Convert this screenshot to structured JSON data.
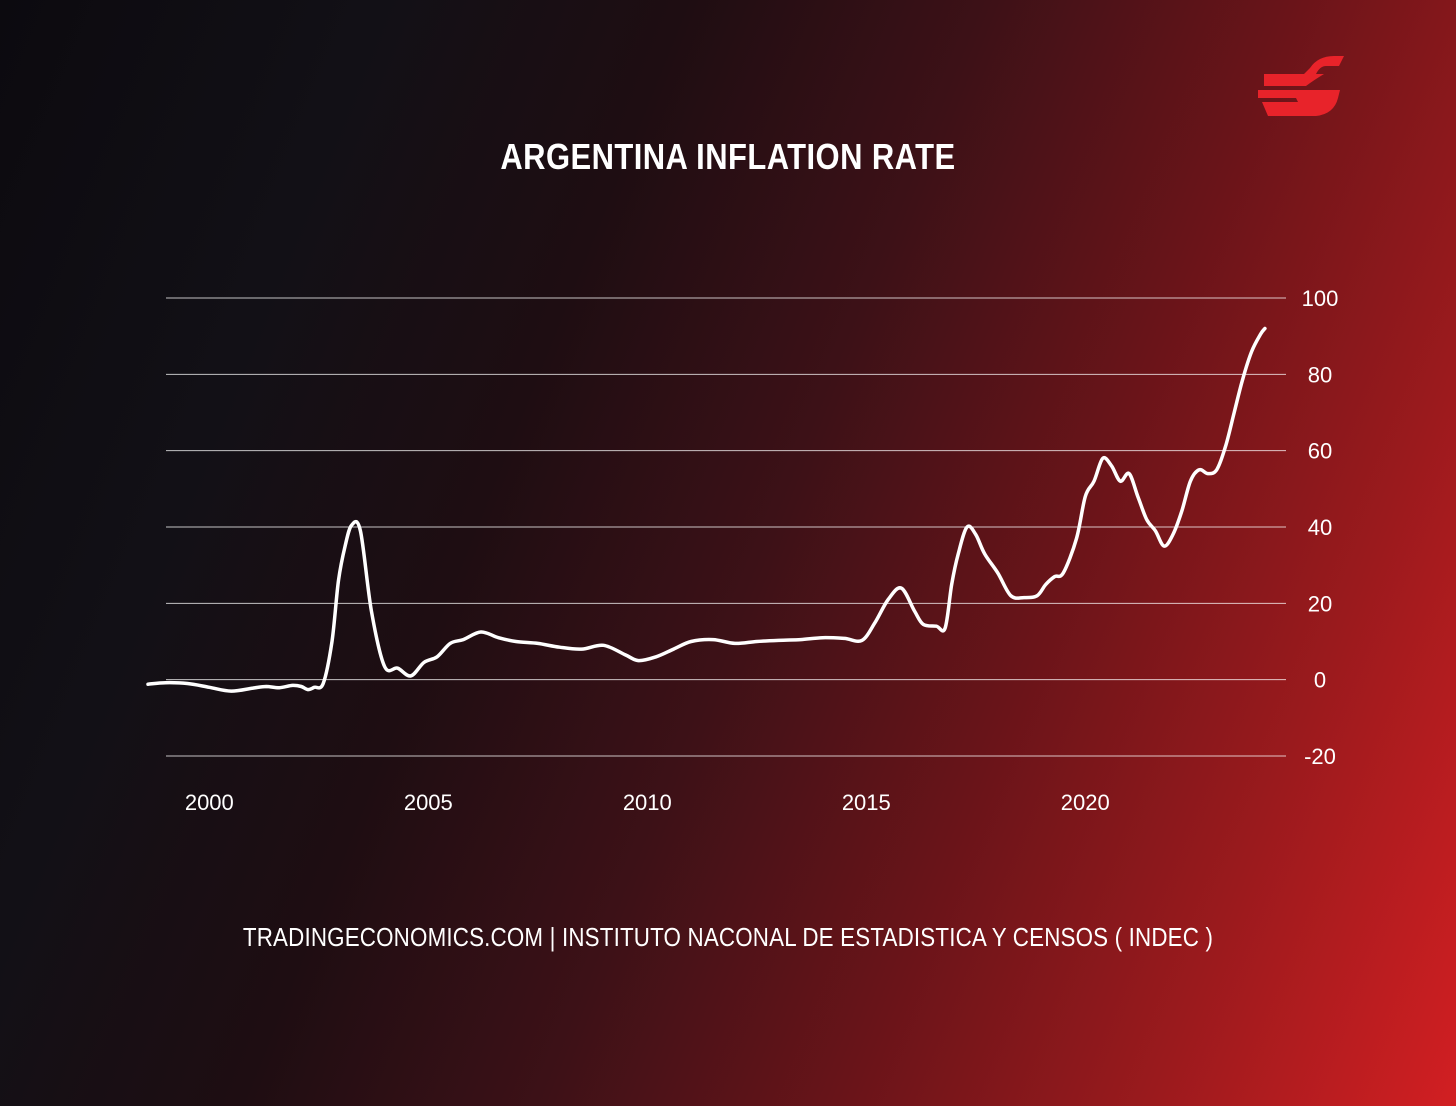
{
  "logo_color": "#e8232a",
  "chart_data": {
    "type": "line",
    "title": "ARGENTINA INFLATION RATE",
    "source": "TRADINGECONOMICS.COM | INSTITUTO NACONAL DE ESTADISTICA Y CENSOS ( INDEC )",
    "xlabel": "",
    "ylabel": "",
    "ylim": [
      -20,
      100
    ],
    "xlim": [
      1998.6,
      2024.4
    ],
    "y_ticks": [
      -20,
      0,
      20,
      40,
      60,
      80,
      100
    ],
    "x_ticks": [
      2000,
      2005,
      2010,
      2015,
      2020
    ],
    "x_tick_labels": [
      "2000",
      "2005",
      "2010",
      "2015",
      "2020"
    ],
    "grid": true,
    "line_color": "#ffffff",
    "x": [
      1998.6,
      1999.0,
      1999.5,
      2000.0,
      2000.5,
      2001.0,
      2001.3,
      2001.6,
      2001.9,
      2002.1,
      2002.25,
      2002.4,
      2002.6,
      2002.8,
      2002.95,
      2003.1,
      2003.25,
      2003.45,
      2003.7,
      2004.0,
      2004.3,
      2004.6,
      2004.9,
      2005.2,
      2005.5,
      2005.8,
      2006.2,
      2006.6,
      2007.0,
      2007.5,
      2008.0,
      2008.5,
      2009.0,
      2009.5,
      2009.8,
      2010.2,
      2010.6,
      2011.0,
      2011.5,
      2012.0,
      2012.5,
      2013.0,
      2013.5,
      2014.0,
      2014.5,
      2014.9,
      2015.2,
      2015.5,
      2015.8,
      2016.1,
      2016.3,
      2016.6,
      2016.8,
      2016.95,
      2017.1,
      2017.3,
      2017.5,
      2017.7,
      2018.0,
      2018.3,
      2018.6,
      2018.9,
      2019.1,
      2019.3,
      2019.5,
      2019.8,
      2020.0,
      2020.2,
      2020.4,
      2020.6,
      2020.8,
      2021.0,
      2021.2,
      2021.4,
      2021.6,
      2021.8,
      2022.0,
      2022.2,
      2022.4,
      2022.6,
      2022.8,
      2023.0,
      2023.2,
      2023.4,
      2023.6,
      2023.8,
      2024.0,
      2024.1
    ],
    "y": [
      -1.2,
      -0.8,
      -1.0,
      -2.0,
      -3.0,
      -2.2,
      -1.8,
      -2.1,
      -1.5,
      -1.8,
      -2.6,
      -2.0,
      -1.0,
      10.0,
      26.0,
      35.0,
      40.5,
      39.0,
      18.0,
      3.5,
      3.0,
      1.0,
      4.5,
      6.0,
      9.5,
      10.5,
      12.5,
      11.0,
      10.0,
      9.5,
      8.5,
      8.0,
      9.0,
      6.5,
      5.0,
      6.0,
      8.0,
      10.0,
      10.5,
      9.5,
      10.0,
      10.3,
      10.5,
      11.0,
      10.8,
      10.3,
      15.0,
      21.0,
      24.0,
      18.0,
      14.5,
      14.0,
      13.5,
      25.0,
      33.0,
      40.0,
      38.0,
      33.0,
      28.0,
      22.0,
      21.5,
      22.0,
      25.0,
      27.0,
      28.0,
      37.0,
      48.0,
      52.0,
      58.0,
      56.0,
      52.0,
      54.0,
      48.0,
      42.0,
      39.0,
      35.0,
      38.0,
      44.0,
      52.0,
      55.0,
      54.0,
      55.0,
      61.0,
      70.0,
      79.0,
      86.0,
      90.5,
      92.0
    ],
    "y_tick_positions": [
      -20,
      0,
      20,
      40,
      60,
      80,
      100
    ],
    "y_tick_labels": [
      "-20",
      "0",
      "20",
      "40",
      "60",
      "80",
      "100"
    ]
  }
}
